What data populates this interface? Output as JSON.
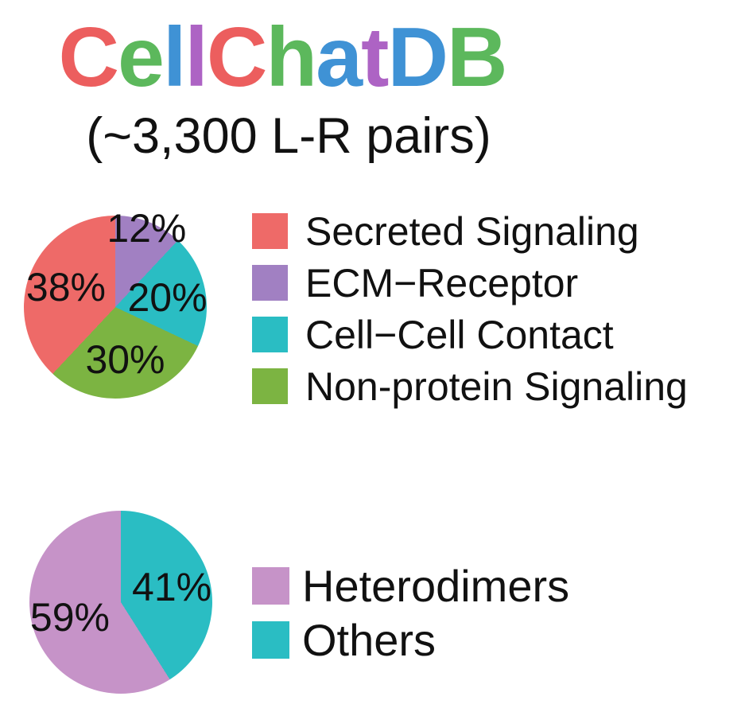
{
  "title": {
    "text": "CellChatDB",
    "letter_colors": [
      "#ec5e5e",
      "#5cb85c",
      "#3f92d5",
      "#ad63c4",
      "#ec5e5e",
      "#5cb85c",
      "#3f92d5",
      "#ad63c4",
      "#3f92d5",
      "#5cb85c"
    ]
  },
  "subtitle": "(~3,300 L-R pairs)",
  "labels_color": "#111111",
  "background_color": "#ffffff",
  "chart_data": [
    {
      "type": "pie",
      "name": "ligand-receptor-categories",
      "start_angle": "12-oclock",
      "direction": "clockwise",
      "slices": [
        {
          "label": "ECM−Receptor",
          "value": 12,
          "display": "12%",
          "color": "#a180c2"
        },
        {
          "label": "Cell−Cell Contact",
          "value": 20,
          "display": "20%",
          "color": "#2abdc3"
        },
        {
          "label": "Non-protein Signaling",
          "value": 30,
          "display": "30%",
          "color": "#7cb442"
        },
        {
          "label": "Secreted Signaling",
          "value": 38,
          "display": "38%",
          "color": "#ee6a68"
        }
      ],
      "legend_position": "right",
      "legend": [
        {
          "label": "Secreted Signaling",
          "color": "#ee6a68"
        },
        {
          "label": "ECM−Receptor",
          "color": "#a180c2"
        },
        {
          "label": "Cell−Cell Contact",
          "color": "#2abdc3"
        },
        {
          "label": "Non-protein Signaling",
          "color": "#7cb442"
        }
      ]
    },
    {
      "type": "pie",
      "name": "multimer-composition",
      "start_angle": "12-oclock",
      "direction": "clockwise",
      "slices": [
        {
          "label": "Others",
          "value": 41,
          "display": "41%",
          "color": "#2abdc3"
        },
        {
          "label": "Heterodimers",
          "value": 59,
          "display": "59%",
          "color": "#c693c8"
        }
      ],
      "legend_position": "right",
      "legend": [
        {
          "label": "Heterodimers",
          "color": "#c693c8"
        },
        {
          "label": "Others",
          "color": "#2abdc3"
        }
      ]
    }
  ]
}
